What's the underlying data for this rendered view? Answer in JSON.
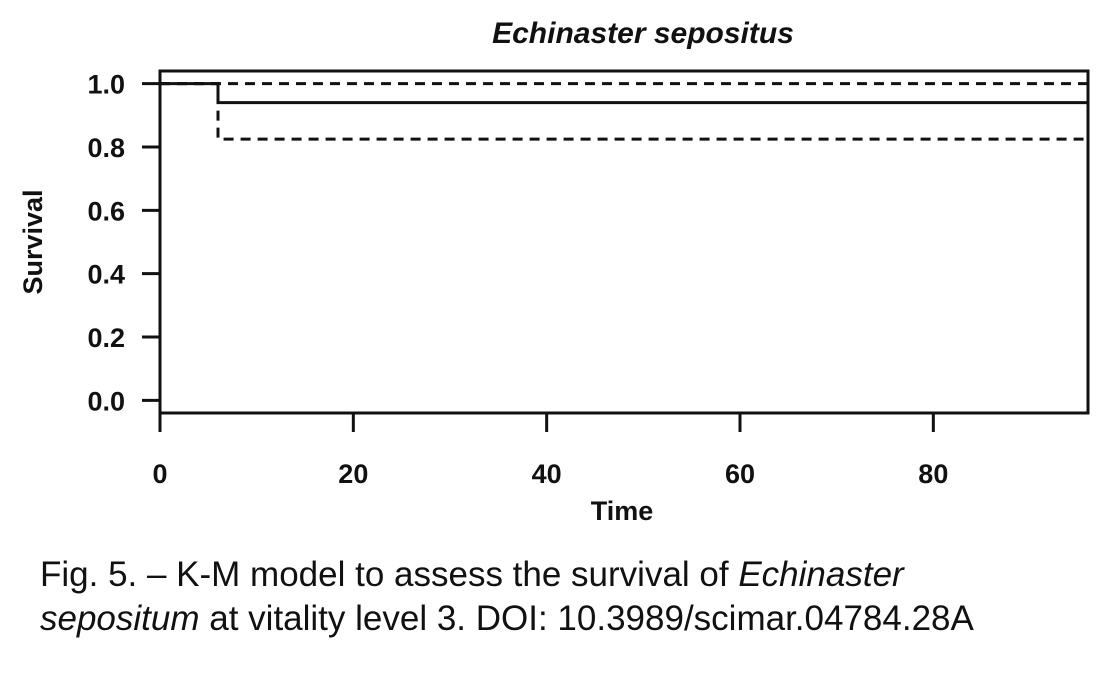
{
  "chart_data": {
    "type": "line",
    "title": "Echinaster sepositus",
    "xlabel": "Time",
    "ylabel": "Survival",
    "xlim": [
      0,
      96
    ],
    "ylim": [
      -0.04,
      1.04
    ],
    "x_ticks": [
      0,
      20,
      40,
      60,
      80
    ],
    "x_tick_labels": [
      "0",
      "20",
      "40",
      "60",
      "80"
    ],
    "y_ticks": [
      0.0,
      0.2,
      0.4,
      0.6,
      0.8,
      1.0
    ],
    "y_tick_labels": [
      "0.0",
      "0.2",
      "0.4",
      "0.6",
      "0.8",
      "1.0"
    ],
    "grid": false,
    "series": [
      {
        "role": "estimate",
        "style": "solid",
        "x": [
          0,
          6,
          96
        ],
        "y": [
          1.0,
          0.94,
          0.94
        ]
      },
      {
        "role": "upper",
        "style": "dashed",
        "x": [
          0,
          6,
          96
        ],
        "y": [
          1.0,
          1.0,
          1.0
        ]
      },
      {
        "role": "lower",
        "style": "dashed",
        "x": [
          0,
          6,
          96
        ],
        "y": [
          1.0,
          0.825,
          0.825
        ]
      }
    ]
  },
  "caption": {
    "prefix": "Fig. 5. – K-M model to assess the survival of ",
    "species_1": "Echinaster",
    "species_2": "sepositum",
    "suffix": " at vitality level 3. DOI: 10.3989/scimar.04784.28A"
  }
}
